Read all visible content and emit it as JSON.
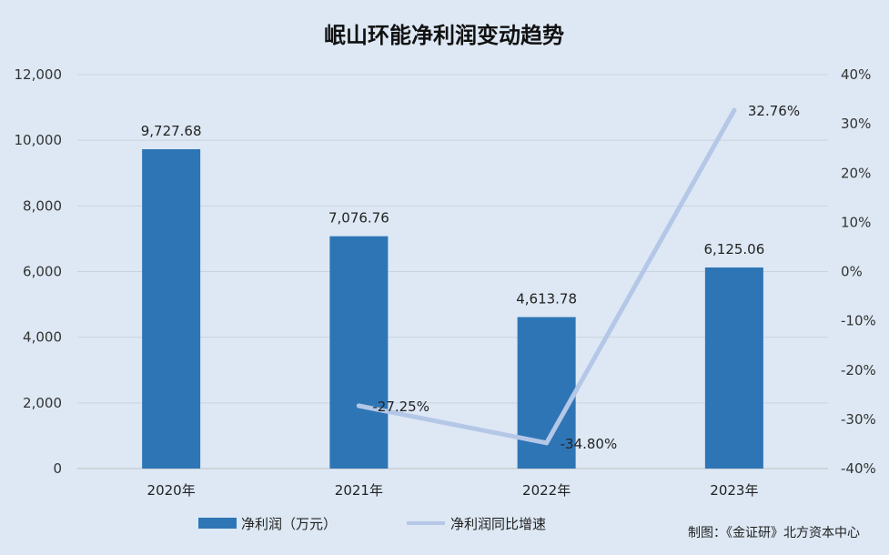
{
  "chart_data": {
    "type": "bar",
    "title": "岷山环能净利润变动趋势",
    "categories": [
      "2020年",
      "2021年",
      "2022年",
      "2023年"
    ],
    "series": [
      {
        "name": "净利润（万元）",
        "type": "bar",
        "axis": "left",
        "values": [
          9727.68,
          7076.76,
          4613.78,
          6125.06
        ],
        "labels": [
          "9,727.68",
          "7,076.76",
          "4,613.78",
          "6,125.06"
        ],
        "color": "#2e75b6"
      },
      {
        "name": "净利润同比增速",
        "type": "line",
        "axis": "right",
        "values": [
          null,
          -27.25,
          -34.8,
          32.76
        ],
        "labels": [
          "",
          "-27.25%",
          "-34.80%",
          "32.76%"
        ],
        "color": "#b4c7e7"
      }
    ],
    "y_left": {
      "min": 0,
      "max": 12000,
      "ticks": [
        "0",
        "2,000",
        "4,000",
        "6,000",
        "8,000",
        "10,000",
        "12,000"
      ]
    },
    "y_right": {
      "min": -40,
      "max": 40,
      "ticks": [
        "-40%",
        "-30%",
        "-20%",
        "-10%",
        "0%",
        "10%",
        "20%",
        "30%",
        "40%"
      ]
    },
    "grid": true,
    "legend": "bottom"
  },
  "source": "制图：《金证研》北方资本中心"
}
